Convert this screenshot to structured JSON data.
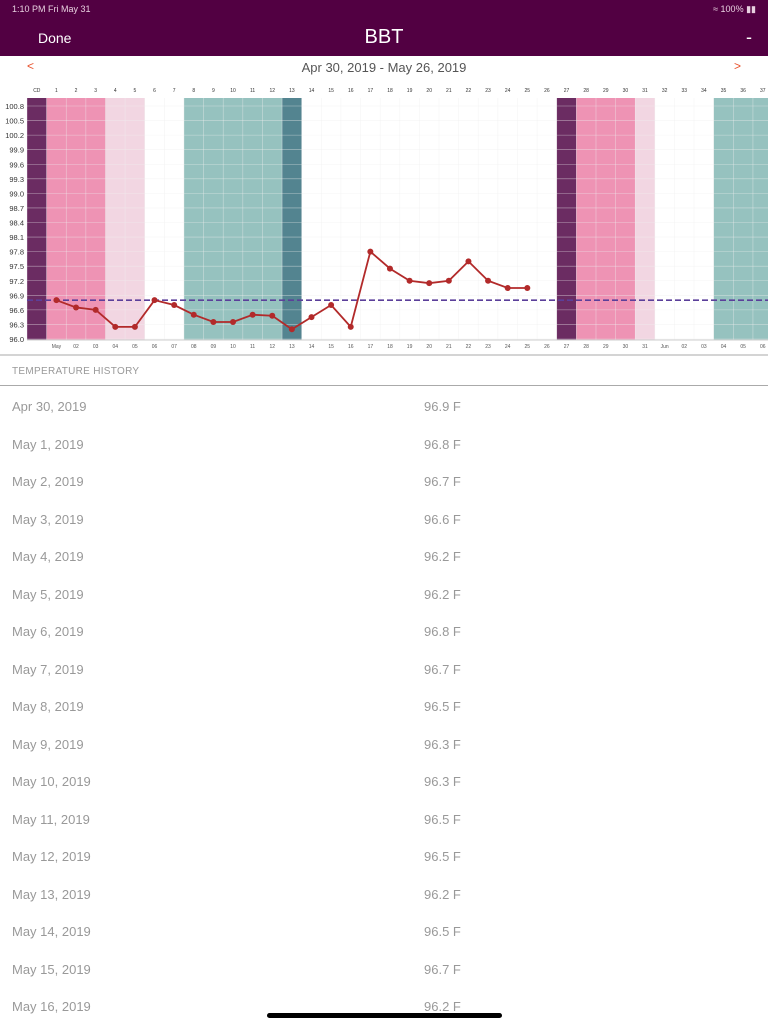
{
  "status_bar": {
    "time": "1:10 PM  Fri May 31",
    "battery": "100%"
  },
  "nav": {
    "done_label": "Done",
    "title": "BBT",
    "minus_label": "-"
  },
  "range": {
    "prev": "<",
    "next": ">",
    "label": "Apr 30, 2019 - May 26, 2019"
  },
  "history": {
    "header": "TEMPERATURE HISTORY",
    "rows": [
      {
        "date": "Apr 30, 2019",
        "temp": "96.9 F"
      },
      {
        "date": "May 1, 2019",
        "temp": "96.8 F"
      },
      {
        "date": "May 2, 2019",
        "temp": "96.7 F"
      },
      {
        "date": "May 3, 2019",
        "temp": "96.6 F"
      },
      {
        "date": "May 4, 2019",
        "temp": "96.2 F"
      },
      {
        "date": "May 5, 2019",
        "temp": "96.2 F"
      },
      {
        "date": "May 6, 2019",
        "temp": "96.8 F"
      },
      {
        "date": "May 7, 2019",
        "temp": "96.7 F"
      },
      {
        "date": "May 8, 2019",
        "temp": "96.5 F"
      },
      {
        "date": "May 9, 2019",
        "temp": "96.3 F"
      },
      {
        "date": "May 10, 2019",
        "temp": "96.3 F"
      },
      {
        "date": "May 11, 2019",
        "temp": "96.5 F"
      },
      {
        "date": "May 12, 2019",
        "temp": "96.5 F"
      },
      {
        "date": "May 13, 2019",
        "temp": "96.2 F"
      },
      {
        "date": "May 14, 2019",
        "temp": "96.5 F"
      },
      {
        "date": "May 15, 2019",
        "temp": "96.7 F"
      },
      {
        "date": "May 16, 2019",
        "temp": "96.2 F"
      }
    ]
  },
  "chart_data": {
    "type": "line",
    "title": "BBT",
    "cycle_day_label": "CD",
    "cycle_days": [
      "1",
      "2",
      "3",
      "4",
      "5",
      "6",
      "7",
      "8",
      "9",
      "10",
      "11",
      "12",
      "13",
      "14",
      "15",
      "16",
      "17",
      "18",
      "19",
      "20",
      "21",
      "22",
      "23",
      "24",
      "25",
      "26",
      "27",
      "28",
      "29",
      "30",
      "31",
      "32",
      "33",
      "34",
      "35",
      "36",
      "37"
    ],
    "date_labels": [
      "May",
      "02",
      "03",
      "04",
      "05",
      "06",
      "07",
      "08",
      "09",
      "10",
      "11",
      "12",
      "13",
      "14",
      "15",
      "16",
      "17",
      "18",
      "19",
      "20",
      "21",
      "22",
      "23",
      "24",
      "25",
      "26",
      "27",
      "28",
      "29",
      "30",
      "31",
      "Jun",
      "02",
      "03",
      "04",
      "05",
      "06"
    ],
    "y_ticks": [
      "100.8",
      "100.5",
      "100.2",
      "99.9",
      "99.6",
      "99.3",
      "99.0",
      "98.7",
      "98.4",
      "98.1",
      "97.8",
      "97.5",
      "97.2",
      "96.9",
      "96.6",
      "96.3",
      "96.0"
    ],
    "ylim": [
      96.0,
      100.8
    ],
    "series": [
      {
        "name": "BBT",
        "color": "#b22a2a",
        "values": [
          96.8,
          96.65,
          96.6,
          96.25,
          96.25,
          96.8,
          96.7,
          96.5,
          96.35,
          96.35,
          96.5,
          96.48,
          96.2,
          96.45,
          96.7,
          96.25,
          97.8,
          97.45,
          97.2,
          97.15,
          97.2,
          97.6,
          97.2,
          97.05,
          97.05
        ]
      }
    ],
    "coverline": 96.8,
    "bands": [
      {
        "from": 0,
        "to": 0,
        "color": "#6b2c62"
      },
      {
        "from": 1,
        "to": 3,
        "color": "#ee93b4"
      },
      {
        "from": 4,
        "to": 5,
        "color": "#f2d6e2"
      },
      {
        "from": 8,
        "to": 12,
        "color": "#96c2bf"
      },
      {
        "from": 13,
        "to": 13,
        "color": "#538490"
      },
      {
        "from": 27,
        "to": 27,
        "color": "#6b2c62"
      },
      {
        "from": 28,
        "to": 30,
        "color": "#ee93b4"
      },
      {
        "from": 31,
        "to": 31,
        "color": "#f2d6e2"
      },
      {
        "from": 35,
        "to": 37,
        "color": "#96c2bf"
      }
    ],
    "grid": true
  }
}
